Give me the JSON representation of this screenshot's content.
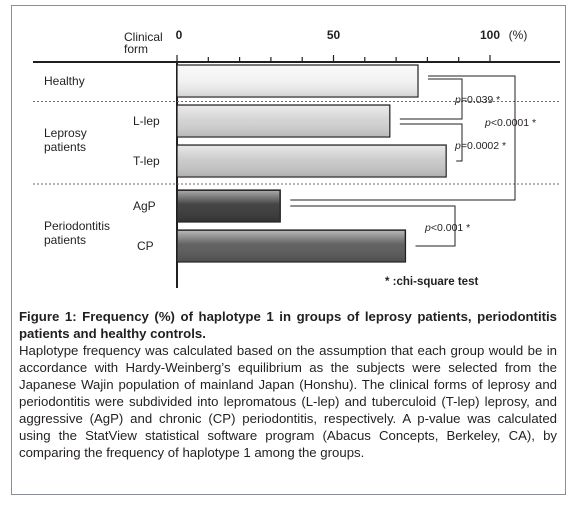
{
  "chart_data": {
    "type": "bar",
    "orientation": "horizontal",
    "axis_title": "Clinical form",
    "x_ticks": [
      "0",
      "50",
      "100"
    ],
    "x_unit": "(%)",
    "xlim": [
      0,
      100
    ],
    "groups": [
      {
        "label": "Healthy",
        "bars": [
          "Healthy"
        ]
      },
      {
        "label": "Leprosy patients",
        "bars": [
          "L-lep",
          "T-lep"
        ]
      },
      {
        "label": "Periodontitis patients",
        "bars": [
          "AgP",
          "CP"
        ]
      }
    ],
    "categories": [
      "Healthy",
      "L-lep",
      "T-lep",
      "AgP",
      "CP"
    ],
    "values": [
      77,
      68,
      86,
      33,
      73
    ],
    "bar_colors": [
      "#f2f2f2",
      "#d2d2d2",
      "#c9c9c9",
      "#3a3a3a",
      "#5a5a5a"
    ],
    "comparisons": [
      {
        "from": "Healthy",
        "to": "L-lep",
        "label": "p=0.039 *"
      },
      {
        "from": "Healthy",
        "to": "AgP",
        "label": "p<0.0001 *"
      },
      {
        "from": "L-lep",
        "to": "T-lep",
        "label": "p=0.0002 *"
      },
      {
        "from": "AgP",
        "to": "CP",
        "label": "p<0.001 *"
      }
    ],
    "footnote": "* :chi-square test"
  },
  "caption": {
    "title": "Figure 1: Frequency (%) of haplotype 1 in groups of leprosy patients, periodontitis patients and healthy controls.",
    "body": "Haplotype frequency was calculated based on the assumption that each group would be in accordance with Hardy-Weinberg’s equilibrium as the subjects were selected from the Japanese Wajin population of mainland Japan (Honshu). The clinical forms of leprosy and periodontitis were subdivided into lepromatous (L-lep) and tuberculoid (T-lep) leprosy, and aggressive (AgP) and chronic (CP) periodontitis, respectively. A p-value was calculated using the StatView statistical software program (Abacus Concepts, Berkeley, CA), by comparing the frequency of haplotype 1 among the groups."
  }
}
